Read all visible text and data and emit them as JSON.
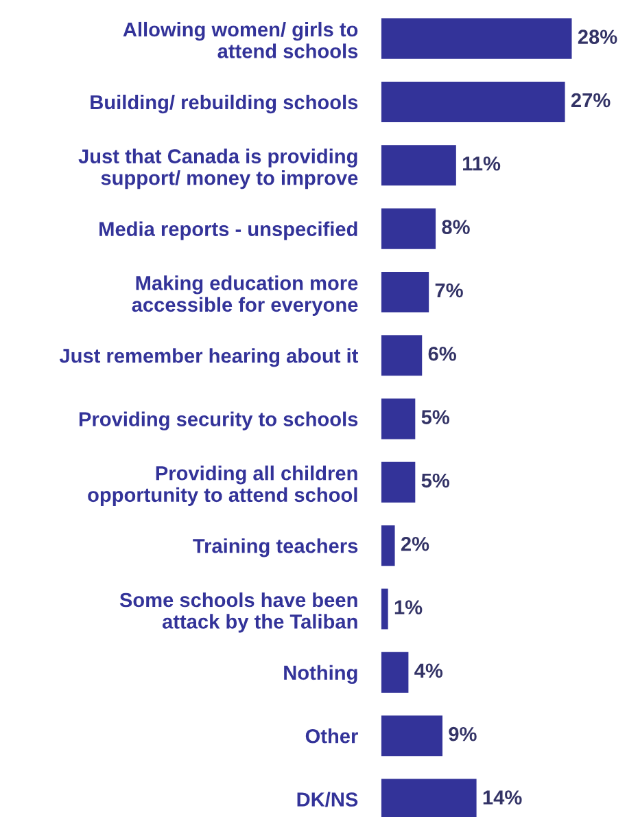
{
  "chart_data": {
    "type": "bar",
    "orientation": "horizontal",
    "categories": [
      "Allowing women/ girls to\nattend schools",
      "Building/ rebuilding schools",
      "Just that Canada is providing\nsupport/ money to improve",
      "Media reports - unspecified",
      "Making education more\naccessible for everyone",
      "Just remember hearing about it",
      "Providing security to schools",
      "Providing all children\nopportunity to attend school",
      "Training teachers",
      "Some schools have been\nattack by the Taliban",
      "Nothing",
      "Other",
      "DK/NS"
    ],
    "values": [
      28,
      27,
      11,
      8,
      7,
      6,
      5,
      5,
      2,
      1,
      4,
      9,
      14
    ],
    "value_labels": [
      "28%",
      "27%",
      "11%",
      "8%",
      "7%",
      "6%",
      "5%",
      "5%",
      "2%",
      "1%",
      "4%",
      "9%",
      "14%"
    ],
    "color": "#333399",
    "grid": false,
    "legend": false
  }
}
